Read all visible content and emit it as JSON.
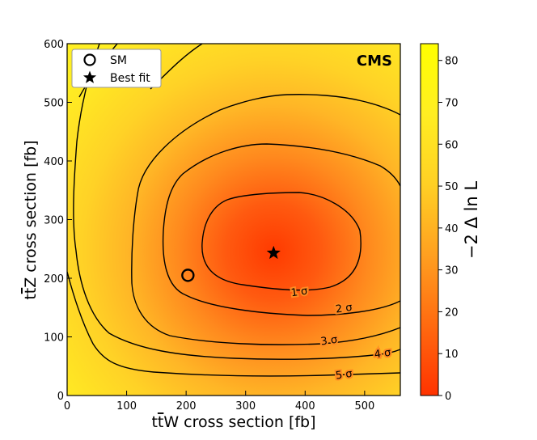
{
  "chart_data": {
    "type": "heatmap",
    "experiment_label": "CMS",
    "xlabel": "t t̅W cross section [fb]",
    "xlabel_parts": [
      "t",
      "t",
      "W cross section [fb]"
    ],
    "ylabel": "t t̅Z cross section [fb]",
    "ylabel_parts": [
      "t",
      "t",
      "Z cross section [fb]"
    ],
    "xlim": [
      0,
      560
    ],
    "ylim": [
      0,
      600
    ],
    "x_ticks": [
      0,
      100,
      200,
      300,
      400,
      500
    ],
    "y_ticks": [
      0,
      100,
      200,
      300,
      400,
      500,
      600
    ],
    "colorbar": {
      "label": "−2 Δ ln L",
      "range": [
        0,
        84
      ],
      "ticks": [
        0,
        10,
        20,
        30,
        40,
        50,
        60,
        70,
        80
      ],
      "colormap": [
        "#ff3300",
        "#ff6a10",
        "#ffa020",
        "#ffd024",
        "#ffee22",
        "#ffff00"
      ]
    },
    "legend": {
      "placement": "top-left",
      "entries": [
        {
          "label": "SM",
          "marker": "open-circle"
        },
        {
          "label": "Best fit",
          "marker": "star"
        }
      ]
    },
    "points": {
      "sm": {
        "x": 203,
        "y": 205
      },
      "best_fit": {
        "x": 347,
        "y": 243
      }
    },
    "contours": [
      {
        "label": "1 σ",
        "sigma": 1,
        "label_at": {
          "x": 390,
          "y": 178
        }
      },
      {
        "label": "2 σ",
        "sigma": 2,
        "label_at": {
          "x": 465,
          "y": 150
        }
      },
      {
        "label": "3 σ",
        "sigma": 3,
        "label_at": {
          "x": 440,
          "y": 95
        }
      },
      {
        "label": "4 σ",
        "sigma": 4,
        "label_at": {
          "x": 530,
          "y": 73
        }
      },
      {
        "label": "5 σ",
        "sigma": 5,
        "label_at": {
          "x": 465,
          "y": 37
        }
      }
    ]
  }
}
